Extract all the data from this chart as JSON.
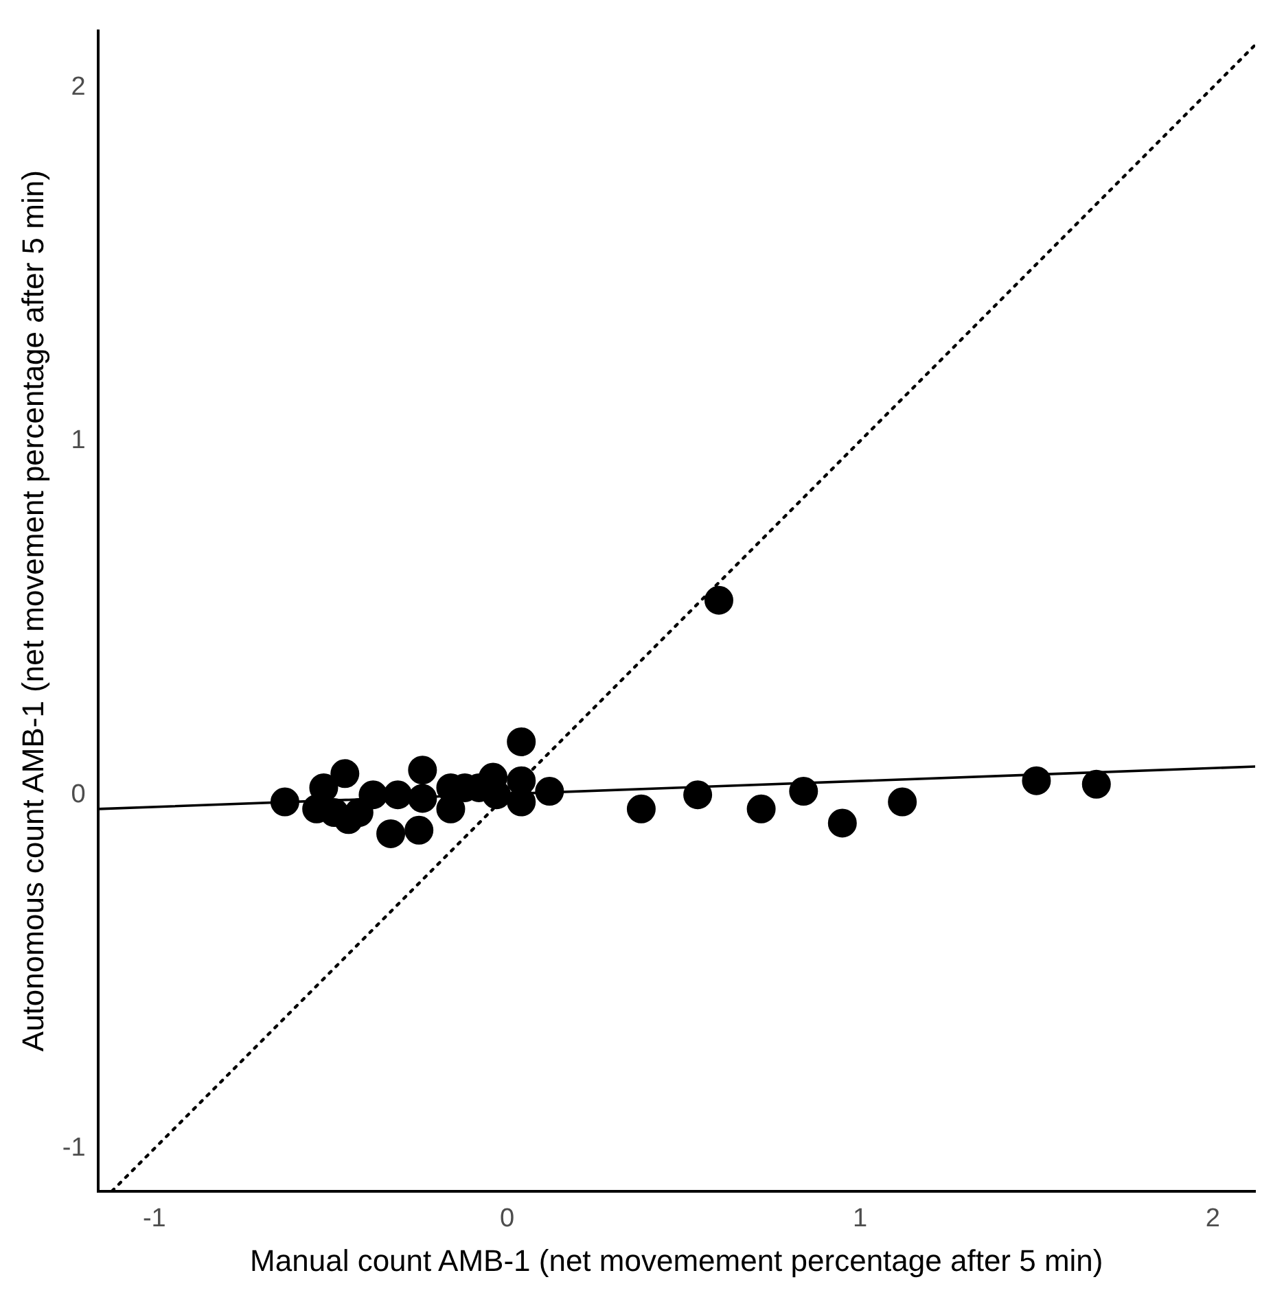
{
  "chart_data": {
    "type": "scatter",
    "xlabel": "Manual count AMB-1 (net movemement percentage after 5 min)",
    "ylabel": "Autonomous count AMB-1 (net movement percentage after 5 min)",
    "xlim": [
      -1.16,
      2.12
    ],
    "ylim": [
      -1.12,
      2.16
    ],
    "xticks": [
      -1,
      0,
      1,
      2
    ],
    "yticks": [
      -1,
      0,
      1,
      2
    ],
    "grid": false,
    "legend": false,
    "series": [
      {
        "type": "scatter",
        "color": "#000000",
        "marker": "circle",
        "x": [
          -0.63,
          -0.54,
          -0.52,
          -0.46,
          -0.49,
          -0.45,
          -0.42,
          -0.38,
          -0.33,
          -0.31,
          -0.25,
          -0.24,
          -0.24,
          -0.19,
          -0.16,
          -0.16,
          -0.12,
          -0.08,
          -0.04,
          -0.03,
          0.04,
          0.04,
          0.04,
          0.12,
          0.38,
          0.54,
          0.6,
          0.72,
          0.84,
          0.95,
          1.12,
          1.5,
          1.67
        ],
        "values": [
          -0.02,
          -0.04,
          0.02,
          0.06,
          -0.05,
          -0.07,
          -0.05,
          0.0,
          -0.11,
          0.0,
          -0.1,
          0.07,
          -0.01,
          null,
          -0.04,
          0.02,
          0.02,
          0.02,
          0.05,
          0.0,
          0.15,
          0.04,
          -0.02,
          0.01,
          -0.04,
          0.0,
          0.55,
          -0.04,
          0.01,
          -0.08,
          -0.02,
          0.04,
          0.03
        ]
      },
      {
        "type": "line",
        "color": "#000000",
        "line_style": "solid",
        "marker": "none",
        "x": [
          -1.16,
          2.12
        ],
        "values": [
          -0.04,
          0.08
        ]
      },
      {
        "type": "line",
        "color": "#000000",
        "line_style": "dotted",
        "marker": "none",
        "x": [
          -1.12,
          2.12
        ],
        "values": [
          -1.12,
          2.12
        ]
      }
    ]
  }
}
